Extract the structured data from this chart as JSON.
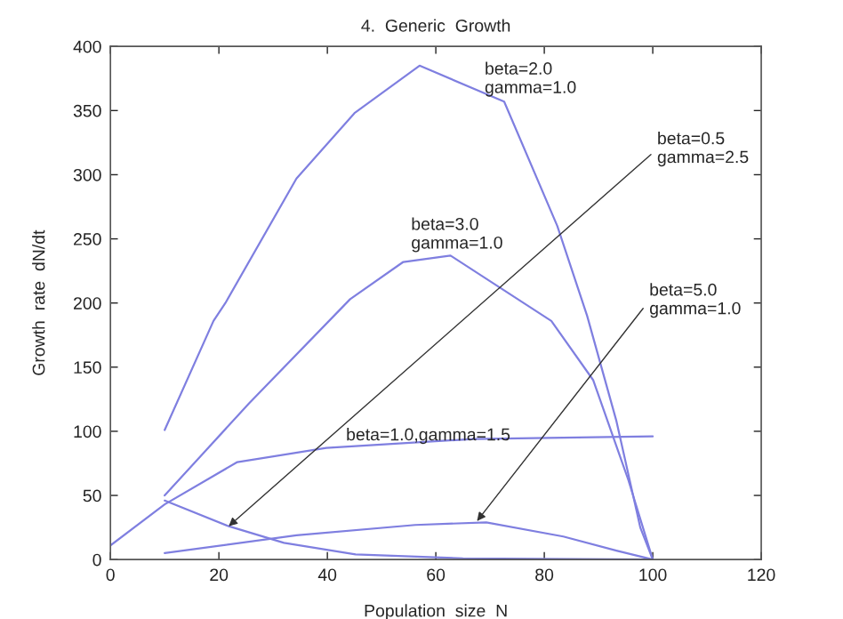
{
  "chart_data": {
    "type": "line",
    "title": "4.  Generic  Growth",
    "xlabel": "Population  size  N",
    "ylabel": "Growth  rate  dN/dt",
    "xlim": [
      0,
      120
    ],
    "xticks": [
      0,
      20,
      40,
      60,
      80,
      100,
      120
    ],
    "ylim": [
      0,
      400
    ],
    "yticks": [
      0,
      50,
      100,
      150,
      200,
      250,
      300,
      350,
      400
    ],
    "grid": false,
    "legend": false,
    "marker": "none",
    "line_style": "solid",
    "series": [
      {
        "color": "#7f7fe0",
        "x": [
          10,
          19,
          21.2,
          34.3,
          45,
          57,
          72.6,
          82.4,
          87.9,
          93.3,
          97.7,
          100
        ],
        "values": [
          101,
          186,
          200,
          297,
          348,
          385,
          357,
          260,
          190,
          108,
          25,
          0
        ]
      },
      {
        "color": "#7f7fe0",
        "x": [
          10,
          25.6,
          44.2,
          54,
          62.7,
          81.3,
          89,
          95.5,
          100
        ],
        "values": [
          50,
          122,
          203,
          232,
          237,
          186,
          140,
          62,
          0
        ]
      },
      {
        "color": "#7f7fe0",
        "x": [
          0,
          10,
          23.4,
          39.8,
          67,
          100
        ],
        "values": [
          11,
          43,
          76,
          87,
          94,
          96
        ]
      },
      {
        "color": "#7f7fe0",
        "x": [
          10,
          21.8,
          32,
          45.2,
          65,
          100
        ],
        "values": [
          46,
          26,
          13,
          4,
          1,
          0
        ]
      },
      {
        "color": "#7f7fe0",
        "x": [
          10,
          34.3,
          56.2,
          69.3,
          83.5,
          93.3,
          100
        ],
        "values": [
          5,
          19,
          27,
          29,
          18,
          7,
          0
        ]
      }
    ],
    "annotations": [
      "beta=2.0\ngamma=1.0",
      {
        "text": "beta=0.5\ngamma=2.5",
        "x": 21.8,
        "y": 26
      },
      "beta=3.0\ngamma=1.0",
      {
        "text": "beta=5.0\ngamma=1.0",
        "x": 67.6,
        "y": 30
      },
      "beta=1.0,gamma=1.5"
    ]
  }
}
